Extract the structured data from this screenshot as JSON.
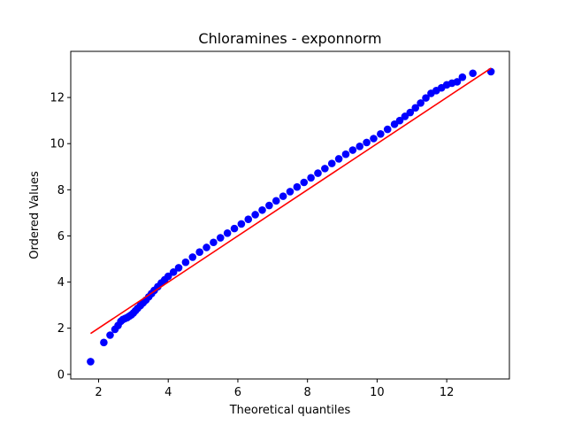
{
  "chart_data": {
    "type": "scatter",
    "title": "Chloramines - exponnorm",
    "xlabel": "Theoretical quantiles",
    "ylabel": "Ordered Values",
    "xlim": [
      1.2,
      13.8
    ],
    "ylim": [
      -0.2,
      14.0
    ],
    "xticks": [
      2,
      4,
      6,
      8,
      10,
      12
    ],
    "yticks": [
      0,
      2,
      4,
      6,
      8,
      10,
      12
    ],
    "grid": false,
    "point_color": "#0000ff",
    "line_color": "#ff0000",
    "fit_line": {
      "x": [
        1.77,
        13.27
      ],
      "y": [
        1.77,
        13.27
      ]
    },
    "series": [
      {
        "values_x": [
          1.77,
          2.15,
          2.33,
          2.47,
          2.56,
          2.64,
          2.7,
          2.76,
          2.82,
          2.88,
          2.94,
          3.0,
          3.06,
          3.12,
          3.2,
          3.28,
          3.36,
          3.44,
          3.52,
          3.6,
          3.7,
          3.8,
          3.9,
          4.0,
          4.15,
          4.3,
          4.5,
          4.7,
          4.9,
          5.1,
          5.3,
          5.5,
          5.7,
          5.9,
          6.1,
          6.3,
          6.5,
          6.7,
          6.9,
          7.1,
          7.3,
          7.5,
          7.7,
          7.9,
          8.1,
          8.3,
          8.5,
          8.7,
          8.9,
          9.1,
          9.3,
          9.5,
          9.7,
          9.9,
          10.1,
          10.3,
          10.5,
          10.65,
          10.8,
          10.95,
          11.1,
          11.25,
          11.4,
          11.55,
          11.7,
          11.85,
          12.0,
          12.15,
          12.3,
          12.45,
          12.75,
          13.27
        ],
        "values_y": [
          0.55,
          1.38,
          1.7,
          1.95,
          2.12,
          2.3,
          2.38,
          2.42,
          2.46,
          2.52,
          2.58,
          2.66,
          2.76,
          2.86,
          2.98,
          3.1,
          3.22,
          3.36,
          3.5,
          3.64,
          3.8,
          3.96,
          4.1,
          4.25,
          4.43,
          4.62,
          4.86,
          5.08,
          5.3,
          5.5,
          5.72,
          5.92,
          6.12,
          6.32,
          6.52,
          6.72,
          6.92,
          7.12,
          7.32,
          7.52,
          7.72,
          7.92,
          8.12,
          8.32,
          8.52,
          8.72,
          8.92,
          9.14,
          9.34,
          9.54,
          9.72,
          9.88,
          10.05,
          10.22,
          10.42,
          10.62,
          10.84,
          11.0,
          11.18,
          11.35,
          11.55,
          11.76,
          11.98,
          12.18,
          12.3,
          12.42,
          12.55,
          12.62,
          12.68,
          12.88,
          13.05,
          13.12
        ]
      }
    ]
  }
}
